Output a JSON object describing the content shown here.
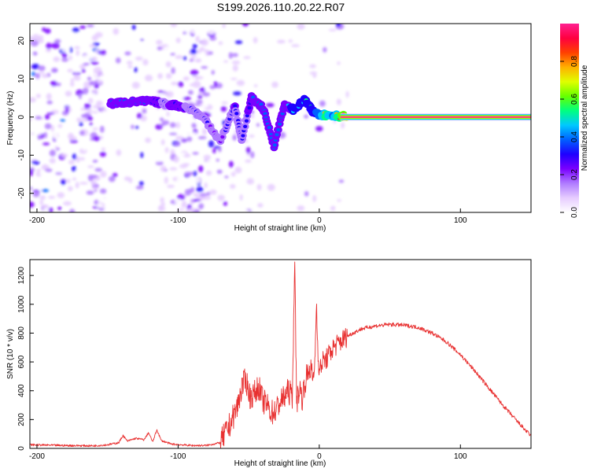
{
  "title": "S199.2026.110.20.22.R07",
  "chart_data": [
    {
      "type": "heatmap",
      "name": "spectrogram",
      "xlabel": "Height of straight line (km)",
      "ylabel": "Frequency (Hz)",
      "xlim": [
        -205,
        150
      ],
      "ylim": [
        -25,
        24.5
      ],
      "xticks": [
        -200,
        -100,
        0,
        100
      ],
      "yticks": [
        -20,
        -10,
        0,
        10,
        20
      ],
      "colorbar": {
        "label": "Normalized spectral amplitude",
        "range": [
          0,
          1
        ],
        "ticks": [
          0.0,
          0.2,
          0.4,
          0.6,
          0.8
        ],
        "colors": [
          "#ffffff",
          "#e6ccff",
          "#b07cff",
          "#7a00ff",
          "#1f00ff",
          "#0060ff",
          "#00c8ff",
          "#00ff80",
          "#66ff00",
          "#e0ff00",
          "#ffb000",
          "#ff4000",
          "#ff0040",
          "#ff2090"
        ]
      },
      "ridge": [
        {
          "x": -148,
          "f": 3.5,
          "amp": 0.3
        },
        {
          "x": -140,
          "f": 3.8,
          "amp": 0.32
        },
        {
          "x": -130,
          "f": 4.0,
          "amp": 0.3
        },
        {
          "x": -120,
          "f": 4.2,
          "amp": 0.28
        },
        {
          "x": -110,
          "f": 3.5,
          "amp": 0.25
        },
        {
          "x": -100,
          "f": 3.0,
          "amp": 0.27
        },
        {
          "x": -90,
          "f": 2.0,
          "amp": 0.24
        },
        {
          "x": -80,
          "f": -1.0,
          "amp": 0.22
        },
        {
          "x": -70,
          "f": -6.5,
          "amp": 0.2
        },
        {
          "x": -60,
          "f": 3.0,
          "amp": 0.26
        },
        {
          "x": -55,
          "f": -6.0,
          "amp": 0.22
        },
        {
          "x": -48,
          "f": 5.0,
          "amp": 0.28
        },
        {
          "x": -40,
          "f": 2.5,
          "amp": 0.3
        },
        {
          "x": -32,
          "f": -7.5,
          "amp": 0.28
        },
        {
          "x": -25,
          "f": 3.0,
          "amp": 0.32
        },
        {
          "x": -18,
          "f": 2.0,
          "amp": 0.38
        },
        {
          "x": -10,
          "f": 4.5,
          "amp": 0.4
        },
        {
          "x": -5,
          "f": 1.5,
          "amp": 0.42
        },
        {
          "x": 0,
          "f": 0.8,
          "amp": 0.5
        },
        {
          "x": 5,
          "f": 0.5,
          "amp": 0.7
        },
        {
          "x": 10,
          "f": 0.5,
          "amp": 0.55
        },
        {
          "x": 20,
          "f": 0.0,
          "amp": 0.98
        },
        {
          "x": 150,
          "f": 0.0,
          "amp": 0.98
        }
      ]
    },
    {
      "type": "line",
      "name": "snr",
      "xlabel": "Height of straight line (km)",
      "ylabel": "SNR (10 * v/v)",
      "xlim": [
        -205,
        150
      ],
      "ylim": [
        0,
        1310
      ],
      "xticks": [
        -200,
        -100,
        0,
        100
      ],
      "yticks": [
        0,
        200,
        400,
        600,
        800,
        1000,
        1200
      ],
      "color": "#e83030",
      "series": [
        {
          "name": "SNR",
          "x": [
            -205,
            -180,
            -160,
            -150,
            -142,
            -139,
            -136,
            -130,
            -124,
            -121,
            -118,
            -115,
            -112,
            -105,
            -90,
            -80,
            -70,
            -64,
            -58,
            -55,
            -52,
            -49,
            -46,
            -43,
            -40,
            -37,
            -34,
            -31,
            -28,
            -25,
            -22,
            -19,
            -17.5,
            -16,
            -14,
            -12,
            -10,
            -8,
            -6,
            -4,
            -3,
            -2,
            -1,
            0,
            2,
            5,
            10,
            20,
            30,
            40,
            50,
            60,
            70,
            80,
            90,
            100,
            110,
            120,
            130,
            140,
            150
          ],
          "y": [
            25,
            20,
            18,
            25,
            40,
            90,
            50,
            70,
            60,
            110,
            45,
            130,
            55,
            30,
            20,
            20,
            40,
            150,
            290,
            420,
            480,
            360,
            380,
            430,
            330,
            300,
            250,
            260,
            320,
            350,
            400,
            360,
            1310,
            320,
            420,
            350,
            470,
            520,
            560,
            460,
            650,
            1000,
            700,
            520,
            600,
            620,
            700,
            780,
            830,
            850,
            860,
            855,
            840,
            800,
            740,
            650,
            540,
            420,
            300,
            190,
            85
          ]
        }
      ]
    }
  ]
}
